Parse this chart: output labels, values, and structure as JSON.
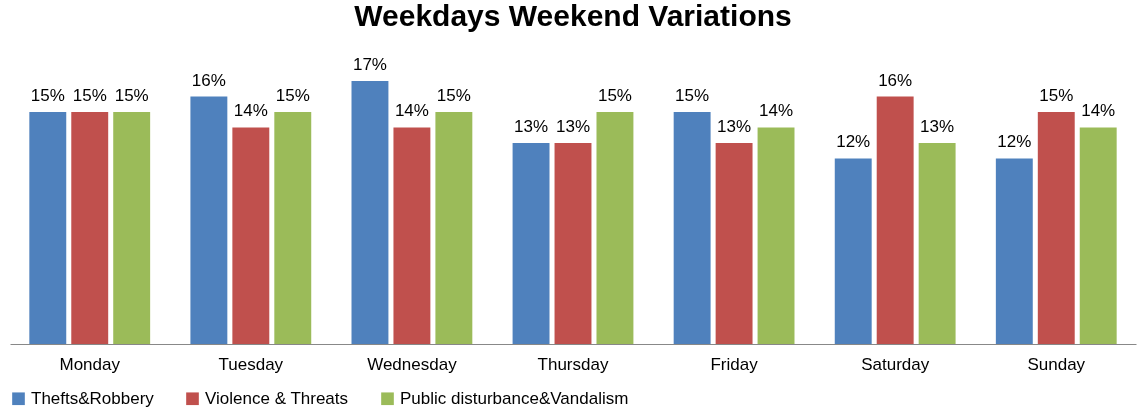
{
  "chart_data": {
    "type": "bar",
    "title": "Weekdays Weekend Variations",
    "categories": [
      "Monday",
      "Tuesday",
      "Wednesday",
      "Thursday",
      "Friday",
      "Saturday",
      "Sunday"
    ],
    "series": [
      {
        "name": "Thefts&Robbery",
        "color": "#4f81bd",
        "values": [
          15,
          16,
          17,
          13,
          15,
          12,
          12
        ],
        "value_labels": [
          "15%",
          "16%",
          "17%",
          "13%",
          "15%",
          "12%",
          "12%"
        ]
      },
      {
        "name": "Violence & Threats",
        "color": "#c0504d",
        "values": [
          15,
          14,
          14,
          13,
          13,
          16,
          15
        ],
        "value_labels": [
          "15%",
          "14%",
          "14%",
          "13%",
          "13%",
          "16%",
          "15%"
        ]
      },
      {
        "name": "Public disturbance&Vandalism",
        "color": "#9bbb59",
        "values": [
          15,
          15,
          15,
          15,
          14,
          13,
          14
        ],
        "value_labels": [
          "15%",
          "15%",
          "15%",
          "15%",
          "14%",
          "13%",
          "14%"
        ]
      }
    ],
    "legend": "bottom"
  }
}
